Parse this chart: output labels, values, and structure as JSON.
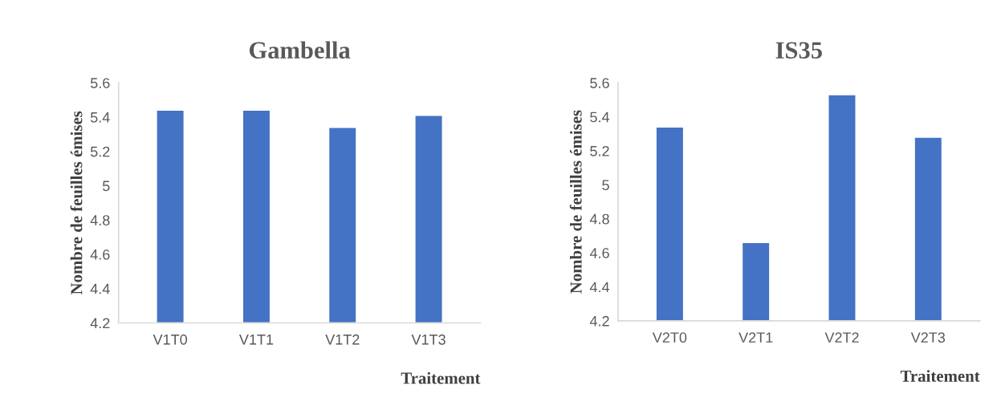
{
  "chart_data": [
    {
      "type": "bar",
      "title": "Gambella",
      "xlabel": "Traitement",
      "ylabel": "Nombre de feuilles émises",
      "categories": [
        "V1T0",
        "V1T1",
        "V1T2",
        "V1T3"
      ],
      "values": [
        5.44,
        5.44,
        5.34,
        5.41
      ],
      "color": "#4472c4",
      "ylim": [
        4.2,
        5.6
      ],
      "yticks": [
        4.2,
        4.4,
        4.6,
        4.8,
        5,
        5.2,
        5.4,
        5.6
      ],
      "grid": false,
      "legend": false
    },
    {
      "type": "bar",
      "title": "IS35",
      "xlabel": "Traitement",
      "ylabel": "Nombre de feuilles émises",
      "categories": [
        "V2T0",
        "V2T1",
        "V2T2",
        "V2T3"
      ],
      "values": [
        5.34,
        4.66,
        5.53,
        5.28
      ],
      "color": "#4472c4",
      "ylim": [
        4.2,
        5.6
      ],
      "yticks": [
        4.2,
        4.4,
        4.6,
        4.8,
        5,
        5.2,
        5.4,
        5.6
      ],
      "grid": false,
      "legend": false
    }
  ]
}
